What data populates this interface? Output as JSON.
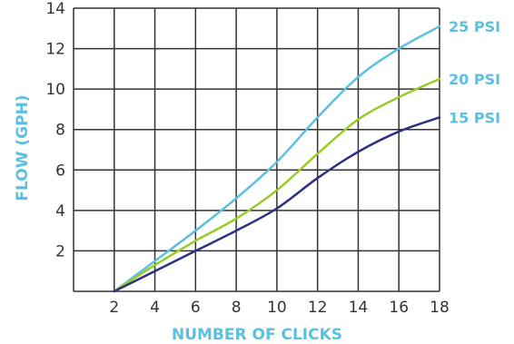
{
  "chart_data": {
    "type": "line",
    "xlabel": "NUMBER OF CLICKS",
    "ylabel": "FLOW (GPH)",
    "xlim": [
      0,
      18
    ],
    "ylim": [
      0,
      14
    ],
    "x_ticks": [
      2,
      4,
      6,
      8,
      10,
      12,
      14,
      16,
      18
    ],
    "y_ticks": [
      2,
      4,
      6,
      8,
      10,
      12,
      14
    ],
    "grid": true,
    "legend": "right-inline",
    "label_color": "#5bc0e0",
    "series": [
      {
        "name": "25 PSI",
        "color": "#5bc0e0",
        "x": [
          2,
          4,
          6,
          8,
          10,
          12,
          14,
          16,
          18
        ],
        "y": [
          0,
          1.5,
          3,
          4.6,
          6.4,
          8.6,
          10.6,
          12,
          13.1
        ]
      },
      {
        "name": "20 PSI",
        "color": "#99cc22",
        "x": [
          2,
          4,
          6,
          8,
          10,
          12,
          14,
          16,
          18
        ],
        "y": [
          0,
          1.3,
          2.5,
          3.6,
          5.0,
          6.8,
          8.5,
          9.6,
          10.5
        ]
      },
      {
        "name": "15 PSI",
        "color": "#2e3080",
        "x": [
          2,
          4,
          6,
          8,
          10,
          12,
          14,
          16,
          18
        ],
        "y": [
          0,
          1.0,
          2.0,
          3.0,
          4.1,
          5.6,
          6.9,
          7.9,
          8.6
        ]
      }
    ]
  }
}
